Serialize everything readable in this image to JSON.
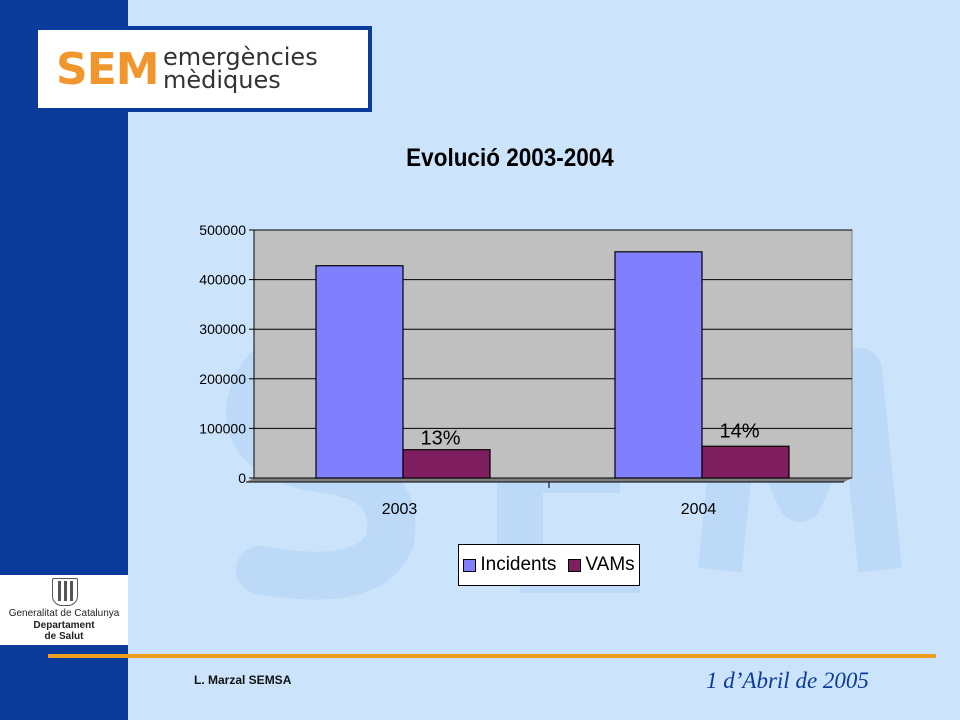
{
  "logo": {
    "sem": "SEM",
    "line1": "emergències",
    "line2": "mèdiques"
  },
  "chart_data": {
    "type": "bar",
    "title": "Evolució 2003-2004",
    "categories": [
      "2003",
      "2004"
    ],
    "series": [
      {
        "name": "Incidents",
        "values": [
          428000,
          456000
        ],
        "color": "#8080ff"
      },
      {
        "name": "VAMs",
        "values": [
          57000,
          64000
        ],
        "color": "#7f1f5f"
      }
    ],
    "annotations": [
      "13%",
      "14%"
    ],
    "ylim": [
      0,
      500000
    ],
    "yticks": [
      0,
      100000,
      200000,
      300000,
      400000,
      500000
    ],
    "grid": true,
    "plot_background": "#c0c0c0",
    "legend_position": "bottom"
  },
  "footer": {
    "gencat_line1": "Generalitat de Catalunya",
    "gencat_line2": "Departament",
    "gencat_line3": "de Salut",
    "author": "L. Marzal   SEMSA",
    "date": "1 d’Abril  de 2005"
  }
}
